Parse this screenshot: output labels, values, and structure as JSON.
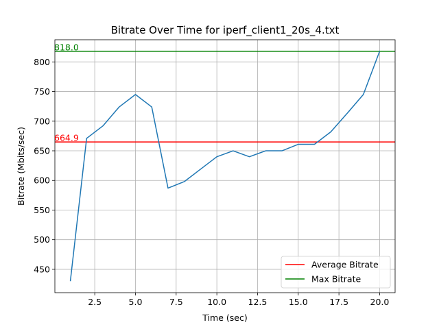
{
  "chart_data": {
    "type": "line",
    "title": "Bitrate Over Time for iperf_client1_20s_4.txt",
    "xlabel": "Time (sec)",
    "ylabel": "Bitrate (Mbits/sec)",
    "xlim": [
      0.05,
      20.95
    ],
    "ylim": [
      410.6,
      837.4
    ],
    "x_ticks": [
      2.5,
      5.0,
      7.5,
      10.0,
      12.5,
      15.0,
      17.5,
      20.0
    ],
    "x_tick_labels": [
      "2.5",
      "5.0",
      "7.5",
      "10.0",
      "12.5",
      "15.0",
      "17.5",
      "20.0"
    ],
    "y_ticks": [
      450,
      500,
      550,
      600,
      650,
      700,
      750,
      800
    ],
    "y_tick_labels": [
      "450",
      "500",
      "550",
      "600",
      "650",
      "700",
      "750",
      "800"
    ],
    "grid": true,
    "legend_position": "lower-right",
    "series": [
      {
        "color": "#1f77b4",
        "x": [
          1,
          2,
          3,
          4,
          5,
          6,
          7,
          8,
          9,
          10,
          11,
          12,
          13,
          14,
          15,
          16,
          17,
          18,
          19,
          20
        ],
        "values": [
          430,
          671,
          692,
          724,
          745,
          724,
          587,
          598,
          619,
          640,
          650,
          640,
          650,
          650,
          661,
          661,
          682,
          713,
          745,
          818
        ]
      }
    ],
    "reference_lines": [
      {
        "name": "Average Bitrate",
        "value": 664.9,
        "label": "664.9",
        "color": "#ff0000"
      },
      {
        "name": "Max Bitrate",
        "value": 818.0,
        "label": "818.0",
        "color": "#008000"
      }
    ]
  }
}
